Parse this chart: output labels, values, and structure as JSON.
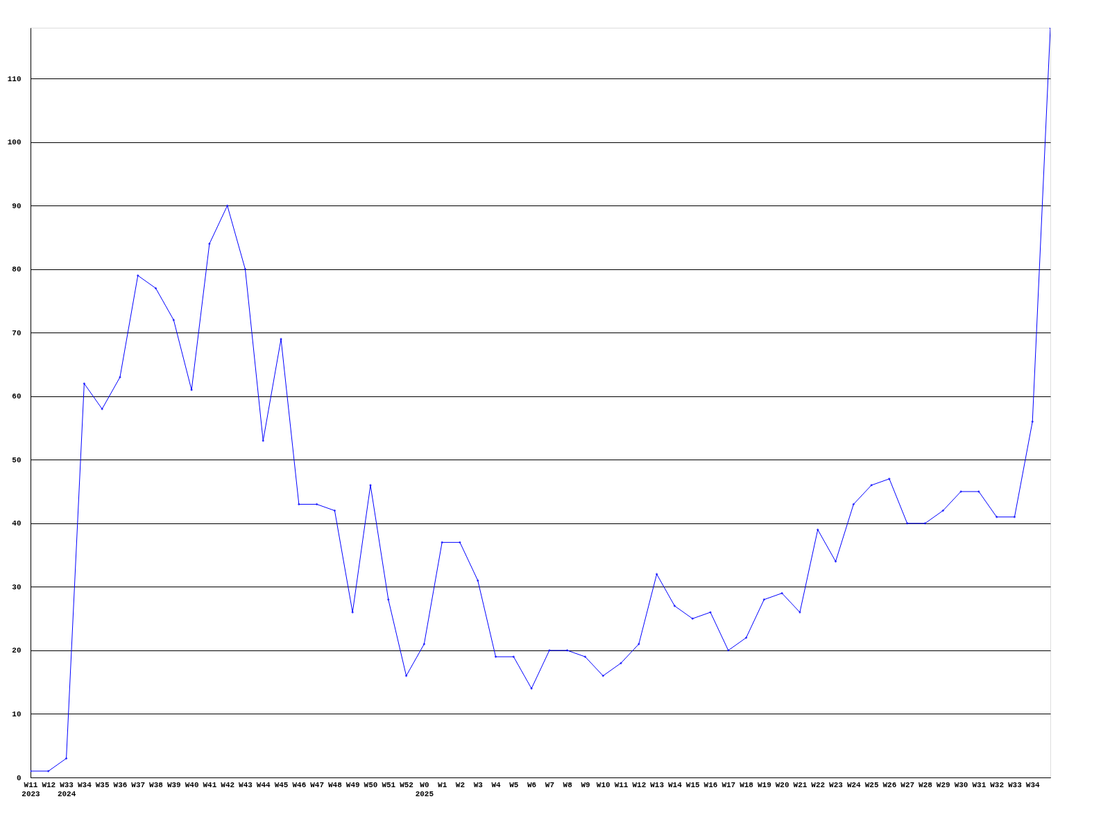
{
  "chart_data": {
    "type": "line",
    "categories": [
      "W11\n2023",
      "W12",
      "W33\n2024",
      "W34",
      "W35",
      "W36",
      "W37",
      "W38",
      "W39",
      "W40",
      "W41",
      "W42",
      "W43",
      "W44",
      "W45",
      "W46",
      "W47",
      "W48",
      "W49",
      "W50",
      "W51",
      "W52",
      "W0\n2025",
      "W1",
      "W2",
      "W3",
      "W4",
      "W5",
      "W6",
      "W7",
      "W8",
      "W9",
      "W10",
      "W11",
      "W12",
      "W13",
      "W14",
      "W15",
      "W16",
      "W17",
      "W18",
      "W19",
      "W20",
      "W21",
      "W22",
      "W23",
      "W24",
      "W25",
      "W26",
      "W27",
      "W28",
      "W29",
      "W30",
      "W31",
      "W32",
      "W33",
      "W34",
      null
    ],
    "series": [
      {
        "color": "#0000ff",
        "values": [
          1,
          1,
          3,
          62,
          58,
          63,
          79,
          77,
          72,
          61,
          84,
          90,
          80,
          53,
          69,
          43,
          43,
          42,
          26,
          46,
          28,
          16,
          21,
          37,
          37,
          31,
          19,
          19,
          14,
          20,
          20,
          19,
          16,
          18,
          21,
          32,
          27,
          25,
          26,
          20,
          22,
          28,
          29,
          26,
          39,
          34,
          43,
          46,
          47,
          40,
          40,
          42,
          45,
          45,
          41,
          41,
          56,
          118
        ]
      }
    ],
    "ylim": [
      0,
      118
    ],
    "yticks": [
      0,
      10,
      20,
      30,
      40,
      50,
      60,
      70,
      80,
      90,
      100,
      110
    ],
    "grid": "y",
    "marker": "diamond",
    "line_style": "solid"
  }
}
